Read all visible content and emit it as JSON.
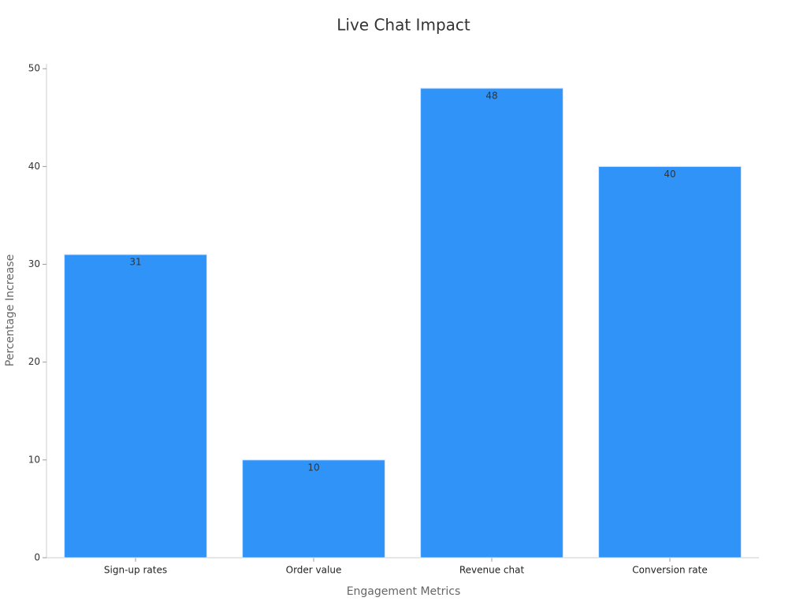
{
  "chart_data": {
    "type": "bar",
    "title": "Live Chat Impact",
    "x_label": "Engagement Metrics",
    "y_label": "Percentage Increase",
    "categories": [
      "Sign-up rates",
      "Order value",
      "Revenue chat",
      "Conversion rate"
    ],
    "values": [
      31,
      10,
      48,
      40
    ],
    "color": "#2f93f8",
    "ylim": [
      0,
      50.5
    ],
    "yticks": [
      0,
      10,
      20,
      30,
      40,
      50
    ],
    "grid": false,
    "data_labels": true
  }
}
